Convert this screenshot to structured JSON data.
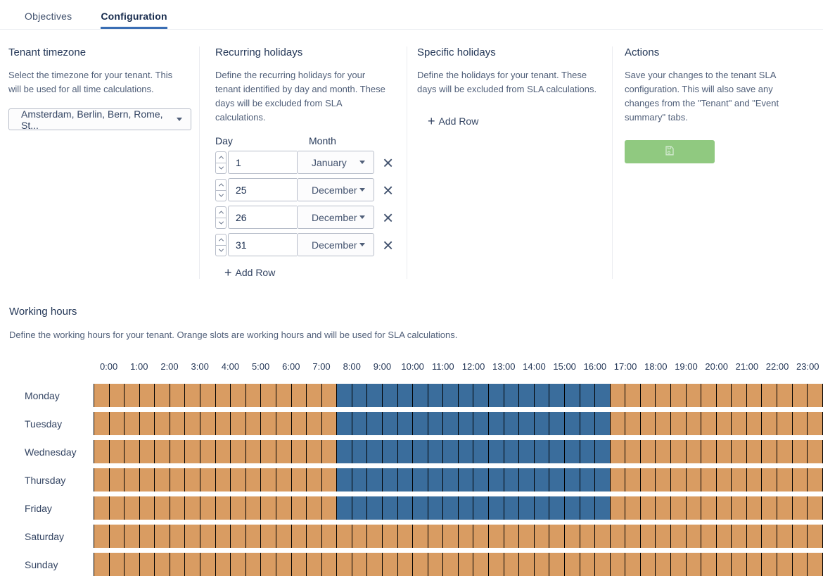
{
  "tabs": {
    "items": [
      {
        "label": "Objectives",
        "active": false
      },
      {
        "label": "Configuration",
        "active": true
      }
    ],
    "active_underline_color": "#3a6eb4"
  },
  "tenant_timezone": {
    "title": "Tenant timezone",
    "description": "Select the timezone for your tenant. This will be used for all time calculations.",
    "selected_value": "Amsterdam, Berlin, Bern, Rome, St..."
  },
  "recurring_holidays": {
    "title": "Recurring holidays",
    "description": "Define the recurring holidays for your tenant identified by day and month. These days will be excluded from SLA calculations.",
    "day_column_label": "Day",
    "month_column_label": "Month",
    "rows": [
      {
        "day": "1",
        "month": "January"
      },
      {
        "day": "25",
        "month": "December"
      },
      {
        "day": "26",
        "month": "December"
      },
      {
        "day": "31",
        "month": "December"
      }
    ],
    "add_row_label": "Add Row"
  },
  "specific_holidays": {
    "title": "Specific holidays",
    "description": "Define the holidays for your tenant. These days will be excluded from SLA calculations.",
    "add_row_label": "Add Row"
  },
  "actions": {
    "title": "Actions",
    "description": "Save your changes to the tenant SLA configuration. This will also save any changes from the \"Tenant\" and \"Event summary\" tabs.",
    "save_button_color": "#90c980",
    "save_icon_color": "#d3ead1",
    "save_icon": "floppy-disk"
  },
  "working_hours": {
    "title": "Working hours",
    "description": "Define the working hours for your tenant. Orange slots are working hours and will be used for SLA calculations.",
    "hour_labels": [
      "0:00",
      "1:00",
      "2:00",
      "3:00",
      "4:00",
      "5:00",
      "6:00",
      "7:00",
      "8:00",
      "9:00",
      "10:00",
      "11:00",
      "12:00",
      "13:00",
      "14:00",
      "15:00",
      "16:00",
      "17:00",
      "18:00",
      "19:00",
      "20:00",
      "21:00",
      "22:00",
      "23:00"
    ],
    "slots_per_hour": 2,
    "colors": {
      "working_orange": "#d99c62",
      "excluded_blue": "#3a6d9c"
    },
    "days": [
      {
        "name": "Monday",
        "blue_from_hour": 8,
        "blue_to_hour": 17
      },
      {
        "name": "Tuesday",
        "blue_from_hour": 8,
        "blue_to_hour": 17
      },
      {
        "name": "Wednesday",
        "blue_from_hour": 8,
        "blue_to_hour": 17
      },
      {
        "name": "Thursday",
        "blue_from_hour": 8,
        "blue_to_hour": 17
      },
      {
        "name": "Friday",
        "blue_from_hour": 8,
        "blue_to_hour": 17
      },
      {
        "name": "Saturday",
        "blue_from_hour": null,
        "blue_to_hour": null
      },
      {
        "name": "Sunday",
        "blue_from_hour": null,
        "blue_to_hour": null
      }
    ]
  }
}
